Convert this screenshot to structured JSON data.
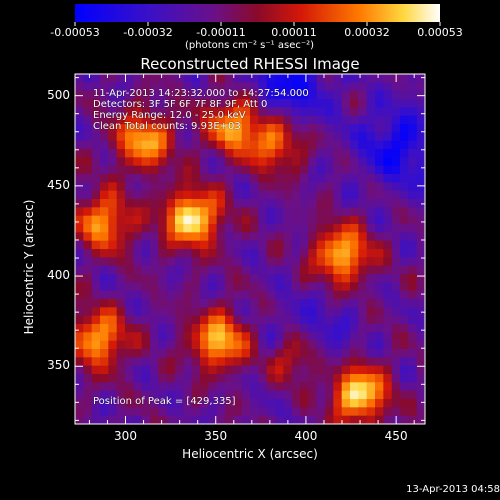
{
  "colorbar": {
    "tick_labels": [
      "-0.00053",
      "-0.00032",
      "-0.00011",
      "0.00011",
      "0.00032",
      "0.00053"
    ],
    "range": [
      -0.00053,
      0.00053
    ],
    "unit_label": "(photons cm⁻² s⁻¹ asec⁻²)",
    "colormap": "blue-purple-red-orange-yellow-white"
  },
  "image": {
    "title": "Reconstructed RHESSI Image",
    "info_lines": [
      "11-Apr-2013 14:23:32.000 to 14:27:54.000",
      "Detectors: 3F 5F 6F 7F 8F 9F, Att 0",
      "Energy Range: 12.0 - 25.0 keV",
      "Clean    Total counts: 9.93E+03"
    ],
    "peak_label": "Position of Peak = [429,335]",
    "footer_date": "13-Apr-2013 04:58"
  },
  "chart_data": {
    "type": "heatmap",
    "title": "Reconstructed RHESSI Image",
    "xlabel": "Heliocentric X (arcsec)",
    "ylabel": "Heliocentric Y (arcsec)",
    "xlim": [
      272,
      466
    ],
    "ylim": [
      318,
      512
    ],
    "x_ticks": [
      300,
      350,
      400,
      450
    ],
    "y_ticks": [
      350,
      400,
      450,
      500
    ],
    "peak": [
      429,
      335
    ],
    "bright_sources": [
      {
        "x": 337,
        "y": 432,
        "level": 1.0
      },
      {
        "x": 429,
        "y": 335,
        "level": 1.0
      },
      {
        "x": 352,
        "y": 364,
        "level": 0.85
      },
      {
        "x": 395,
        "y": 355,
        "level": 0.8
      },
      {
        "x": 420,
        "y": 412,
        "level": 0.85
      },
      {
        "x": 360,
        "y": 484,
        "level": 0.75
      },
      {
        "x": 285,
        "y": 365,
        "level": 0.8
      },
      {
        "x": 310,
        "y": 475,
        "level": 0.8
      },
      {
        "x": 288,
        "y": 430,
        "level": 0.75
      },
      {
        "x": 383,
        "y": 474,
        "level": 0.65
      }
    ],
    "dark_regions": [
      {
        "x": 390,
        "y": 505
      },
      {
        "x": 400,
        "y": 360
      },
      {
        "x": 452,
        "y": 472
      }
    ]
  }
}
